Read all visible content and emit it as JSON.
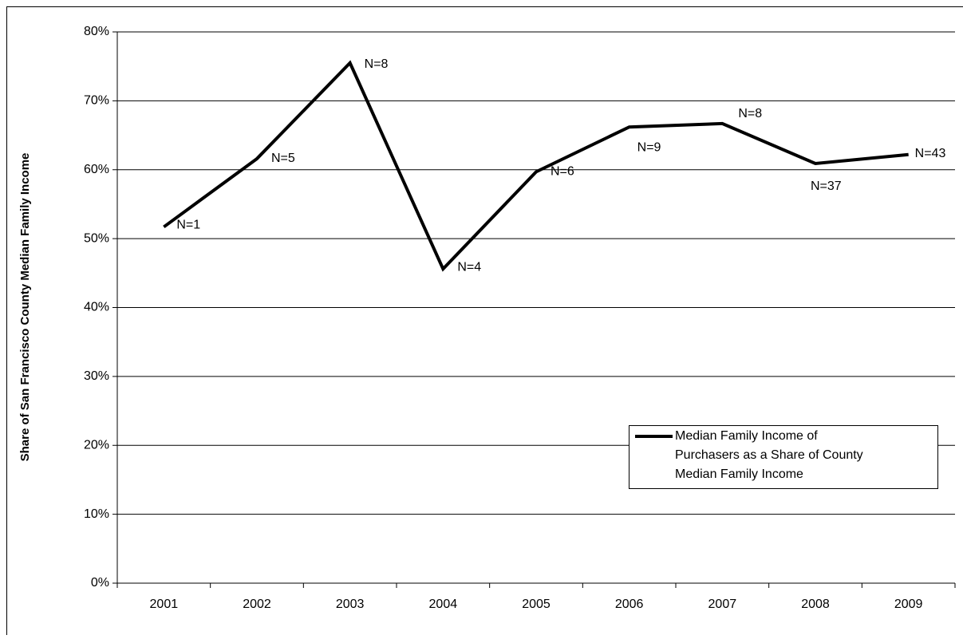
{
  "chart_data": {
    "type": "line",
    "y_axis_label": "Share of San Francisco County Median Family Income",
    "categories": [
      "2001",
      "2002",
      "2003",
      "2004",
      "2005",
      "2006",
      "2007",
      "2008",
      "2009"
    ],
    "series": [
      {
        "name": "Median Family Income of Purchasers as a Share of County Median Family Income",
        "color": "#000000",
        "values": [
          51.7,
          61.6,
          75.5,
          45.6,
          59.7,
          66.2,
          66.7,
          60.9,
          62.2
        ],
        "annotations": [
          "N=1",
          "N=5",
          "N=8",
          "N=4",
          "N=6",
          "N=9",
          "N=8",
          "N=37",
          "N=43"
        ]
      }
    ],
    "ylim": [
      0,
      80
    ],
    "yticks": [
      {
        "value": 0,
        "label": "0%"
      },
      {
        "value": 10,
        "label": "10%"
      },
      {
        "value": 20,
        "label": "20%"
      },
      {
        "value": 30,
        "label": "30%"
      },
      {
        "value": 40,
        "label": "40%"
      },
      {
        "value": 50,
        "label": "50%"
      },
      {
        "value": 60,
        "label": "60%"
      },
      {
        "value": 70,
        "label": "70%"
      },
      {
        "value": 80,
        "label": "80%"
      }
    ],
    "grid": true,
    "legend": "lower right"
  }
}
